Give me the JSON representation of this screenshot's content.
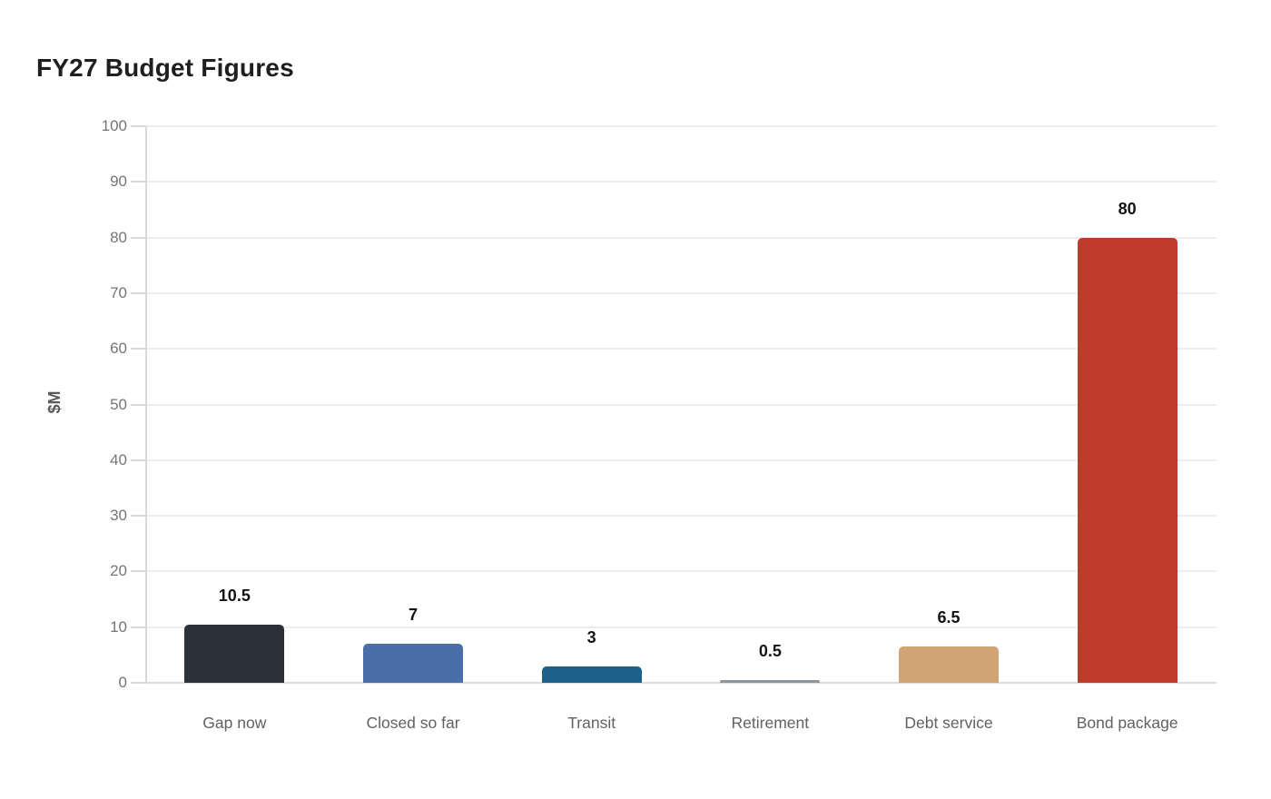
{
  "chart_data": {
    "type": "bar",
    "title": "FY27 Budget Figures",
    "xlabel": "",
    "ylabel": "$M",
    "categories": [
      "Gap now",
      "Closed so far",
      "Transit",
      "Retirement",
      "Debt service",
      "Bond package"
    ],
    "values": [
      10.5,
      7,
      3,
      0.5,
      6.5,
      80
    ],
    "value_labels": [
      "10.5",
      "7",
      "3",
      "0.5",
      "6.5",
      "80"
    ],
    "bar_colors": [
      "#2b3236",
      "#4a6fa8",
      "#1d6189",
      "#8d969c",
      "#d2a373",
      "#c23a2b"
    ],
    "ylim": [
      0,
      100
    ],
    "yticks": [
      0,
      10,
      20,
      30,
      40,
      50,
      60,
      70,
      80,
      90,
      100
    ],
    "grid": "horizontal",
    "legend_position": "none",
    "colors": {
      "background": "#ffffff",
      "gridline": "#ededed",
      "baseline": "#dcdcdc",
      "axis_spine": "#d9d9d9",
      "tick_label": "#757575",
      "category_label": "#616161",
      "value_label": "#141414",
      "title": "#1f1f1f",
      "y_axis_label": "#595959"
    }
  }
}
